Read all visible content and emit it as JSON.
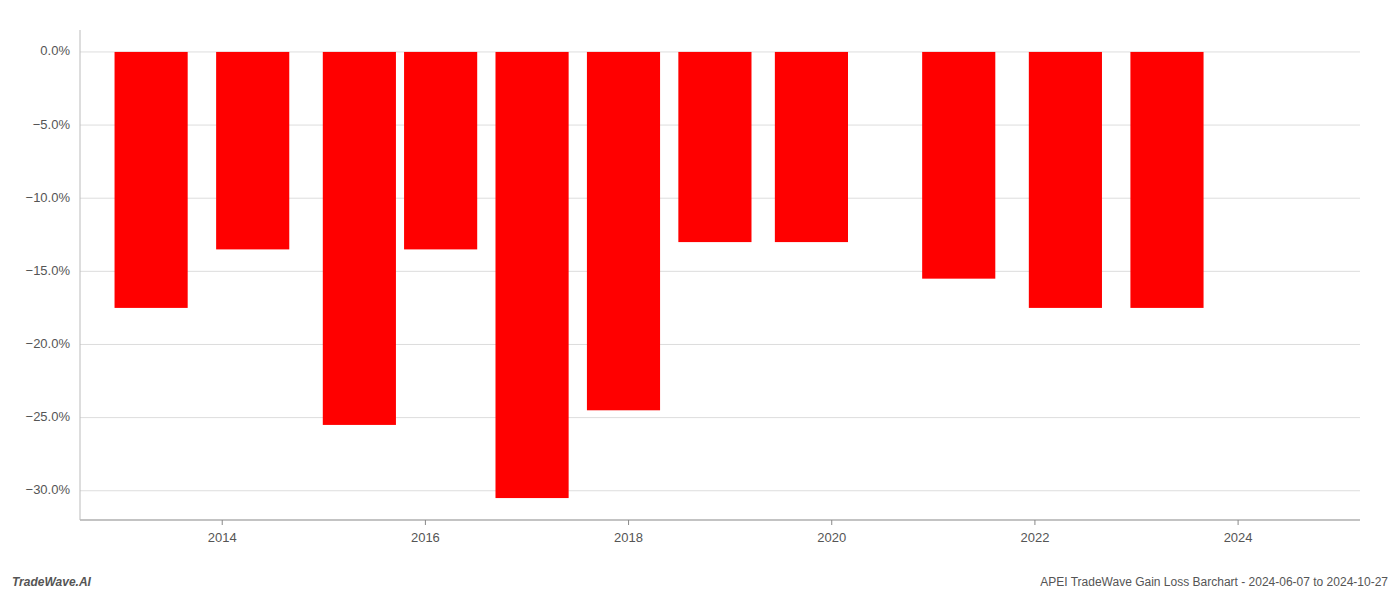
{
  "chart_data": {
    "type": "bar",
    "x": [
      2013.3,
      2014.3,
      2015.35,
      2016.15,
      2017.05,
      2017.95,
      2018.85,
      2019.8,
      2021.25,
      2022.3,
      2023.3
    ],
    "values": [
      -17.5,
      -13.5,
      -25.5,
      -13.5,
      -30.5,
      -24.5,
      -13.0,
      -13.0,
      -15.5,
      -17.5,
      -17.5
    ],
    "color": "#ff0000",
    "xlim": [
      2012.6,
      2025.2
    ],
    "xticks": [
      2014,
      2016,
      2018,
      2020,
      2022,
      2024
    ],
    "ylim": [
      -32,
      1.5
    ],
    "yticks": [
      {
        "value": 0.0,
        "label": "0.0%"
      },
      {
        "value": -5.0,
        "label": "−5.0%"
      },
      {
        "value": -10.0,
        "label": "−10.0%"
      },
      {
        "value": -15.0,
        "label": "−15.0%"
      },
      {
        "value": -20.0,
        "label": "−20.0%"
      },
      {
        "value": -25.0,
        "label": "−25.0%"
      },
      {
        "value": -30.0,
        "label": "−30.0%"
      }
    ],
    "grid": true,
    "annotations": [
      "TradeWave.AI",
      "APEI TradeWave Gain Loss Barchart - 2024-06-07 to 2024-10-27"
    ]
  }
}
